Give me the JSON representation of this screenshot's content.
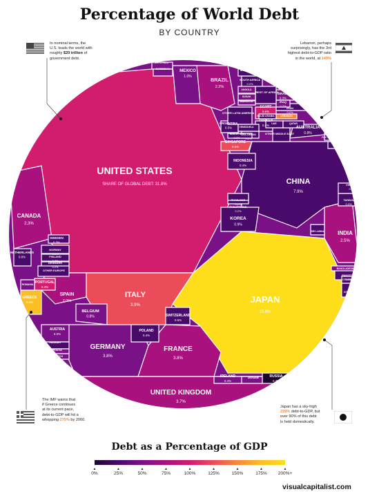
{
  "header": {
    "title": "Percentage of World Debt",
    "subtitle": "BY COUNTRY"
  },
  "notes": {
    "us": {
      "l1": "In nominal terms, the",
      "l2": "U.S. leads the world with",
      "l3a": "roughly ",
      "l3b": "$20 trillion",
      "l3c": " of",
      "l4": "government debt."
    },
    "lebanon": {
      "l1": "Lebanon, perhaps",
      "l2": "surprisingly, has the 3rd",
      "l3": "highest debt-to-GDP ratio",
      "l4a": "in the world, at ",
      "l4b": "149%"
    },
    "greece": {
      "l1": "The IMF warns that",
      "l2": "if Greece continues",
      "l3": "at its current pace,",
      "l4": "debt-to-GDP will hit a",
      "l5a": "whopping ",
      "l5b": "275%",
      "l5c": " by 2060."
    },
    "japan": {
      "l1": "Japan has a sky-high",
      "l2a": "239%",
      "l2b": " debt-to-GDP, but",
      "l3": "over 90% of this debt",
      "l4": "is held domestically."
    }
  },
  "colors": {
    "very_low": "#1c0630",
    "low": "#4a0a6b",
    "mid_low": "#7b1187",
    "mid": "#a9127e",
    "mid_high": "#d21c6e",
    "high": "#ec4c5a",
    "very_high": "#f6883c",
    "extreme": "#fbbf22",
    "top": "#fede1a"
  },
  "chart_data": {
    "type": "treemap",
    "title": "Percentage of World Debt",
    "subtitle": "BY COUNTRY",
    "value_label": "Share of global debt (%)",
    "color_label": "Debt as a Percentage of GDP",
    "color_scale_ticks": [
      "0%",
      "25%",
      "50%",
      "75%",
      "100%",
      "125%",
      "150%",
      "175%",
      "200%+"
    ],
    "countries": [
      {
        "name": "UNITED STATES",
        "share_label": "SHARE OF GLOBAL DEBT: 31.8%",
        "share": 31.8
      },
      {
        "name": "JAPAN",
        "share_label": "15.9%",
        "share": 15.9
      },
      {
        "name": "CHINA",
        "share_label": "7.9%",
        "share": 7.9
      },
      {
        "name": "ITALY",
        "share_label": "3.9%",
        "share": 3.9
      },
      {
        "name": "GERMANY",
        "share_label": "3.8%",
        "share": 3.8
      },
      {
        "name": "FRANCE",
        "share_label": "3.8%",
        "share": 3.8
      },
      {
        "name": "UNITED KINGDOM",
        "share_label": "3.7%",
        "share": 3.7
      },
      {
        "name": "INDIA",
        "share_label": "2.5%",
        "share": 2.5
      },
      {
        "name": "CANADA",
        "share_label": "2.3%",
        "share": 2.3
      },
      {
        "name": "BRAZIL",
        "share_label": "2.2%",
        "share": 2.2
      },
      {
        "name": "SPAIN",
        "share_label": "2.0%",
        "share": 2.0
      },
      {
        "name": "MEXICO",
        "share_label": "1.0%",
        "share": 1.0
      },
      {
        "name": "KOREA",
        "share_label": "0.9%",
        "share": 0.9
      },
      {
        "name": "AUSTRALIA",
        "share_label": "0.8%",
        "share": 0.8
      },
      {
        "name": "BELGIUM",
        "share_label": "0.8%",
        "share": 0.8
      },
      {
        "name": "NETHERLANDS",
        "share_label": "0.8%",
        "share": 0.8
      },
      {
        "name": "SINGAPORE",
        "share_label": "0.5%",
        "share": 0.5
      },
      {
        "name": "EGYPT",
        "share_label": "0.5%",
        "share": 0.5
      },
      {
        "name": "ARGENTINA",
        "share_label": "0.5%",
        "share": 0.5
      },
      {
        "name": "AUSTRIA",
        "share_label": "0.5%",
        "share": 0.5
      },
      {
        "name": "IRELAND",
        "share_label": "0.4%",
        "share": 0.4
      },
      {
        "name": "INDONESIA",
        "share_label": "0.4%",
        "share": 0.4
      },
      {
        "name": "TURKEY",
        "share_label": "0.4%",
        "share": 0.4
      },
      {
        "name": "POLAND",
        "share_label": "0.4%",
        "share": 0.4
      },
      {
        "name": "PORTUGAL",
        "share_label": "0.4%",
        "share": 0.4
      },
      {
        "name": "GREECE",
        "share_label": "0.4%",
        "share": 0.4
      },
      {
        "name": "SWITZERLAND",
        "share_label": "0.5%",
        "share": 0.5
      },
      {
        "name": "RUSSIA",
        "share_label": "0.3%",
        "share": 0.3
      },
      {
        "name": "SWEDEN",
        "share_label": "0.3%",
        "share": 0.3
      },
      {
        "name": "NORWAY",
        "share_label": "0.2%",
        "share": 0.2
      },
      {
        "name": "FINLAND",
        "share_label": "0.3%",
        "share": 0.3
      },
      {
        "name": "DENMARK",
        "share_label": "0.2%",
        "share": 0.2
      },
      {
        "name": "ISRAEL",
        "share_label": "0.3%",
        "share": 0.3
      },
      {
        "name": "IRAN",
        "share_label": "0.2%",
        "share": 0.2
      },
      {
        "name": "TAIWAN",
        "share_label": "0.3%",
        "share": 0.3
      },
      {
        "name": "THAILAND",
        "share_label": "0.2%",
        "share": 0.2
      },
      {
        "name": "VIETNAM",
        "share_label": "0.2%",
        "share": 0.2
      },
      {
        "name": "SOUTH AFRICA",
        "share_label": "0.2%",
        "share": 0.2
      },
      {
        "name": "COLOMBIA",
        "share_label": "0.2%",
        "share": 0.2
      },
      {
        "name": "MALAYSIA",
        "share_label": "0.2%",
        "share": 0.2
      },
      {
        "name": "PHILIPPINES",
        "share_label": "0.2%",
        "share": 0.2
      },
      {
        "name": "PAKISTAN",
        "share_label": "0.2%",
        "share": 0.2
      },
      {
        "name": "IRAQ",
        "share_label": "0.2%",
        "share": 0.2
      },
      {
        "name": "OTHER LATIN AMERICA",
        "share_label": "",
        "share": null
      },
      {
        "name": "OTHER EUROPE",
        "share_label": "",
        "share": null
      },
      {
        "name": "REST OF AFRICA",
        "share_label": "",
        "share": null
      },
      {
        "name": "OTHER MIDDLE EAST",
        "share_label": "",
        "share": null
      },
      {
        "name": "OTHER ASIA",
        "share_label": "",
        "share": null
      },
      {
        "name": "PUERTO RICO",
        "share_label": "",
        "share": null
      },
      {
        "name": "CARIBBEAN",
        "share_label": "",
        "share": null
      },
      {
        "name": "NIGERIA",
        "share_label": "",
        "share": null
      },
      {
        "name": "ANGOLA",
        "share_label": "",
        "share": null
      },
      {
        "name": "SUDAN",
        "share_label": "",
        "share": null
      },
      {
        "name": "MOROCCO",
        "share_label": "",
        "share": null
      },
      {
        "name": "VENEZUELA",
        "share_label": "",
        "share": null
      },
      {
        "name": "SAUDI ARABIA",
        "share_label": "",
        "share": null
      },
      {
        "name": "LEBANON",
        "share_label": "",
        "share": null
      },
      {
        "name": "UAE",
        "share_label": "",
        "share": null
      },
      {
        "name": "QATAR",
        "share_label": "",
        "share": null
      },
      {
        "name": "PAC ISLANDS",
        "share_label": "",
        "share": null
      },
      {
        "name": "NZ",
        "share_label": "",
        "share": null
      },
      {
        "name": "SRI LANKA",
        "share_label": "",
        "share": null
      },
      {
        "name": "BANGLADESH",
        "share_label": "",
        "share": null
      },
      {
        "name": "OTHER ASIA",
        "share_label": "",
        "share": null
      },
      {
        "name": "ROMANIA",
        "share_label": "",
        "share": null
      },
      {
        "name": "HUNGARY",
        "share_label": "",
        "share": null
      },
      {
        "name": "CROATIA",
        "share_label": "",
        "share": null
      },
      {
        "name": "CZECH",
        "share_label": "",
        "share": null
      },
      {
        "name": "UKRAINE",
        "share_label": "",
        "share": null
      }
    ]
  },
  "footer": {
    "brand": "visualcapitalist.com"
  }
}
